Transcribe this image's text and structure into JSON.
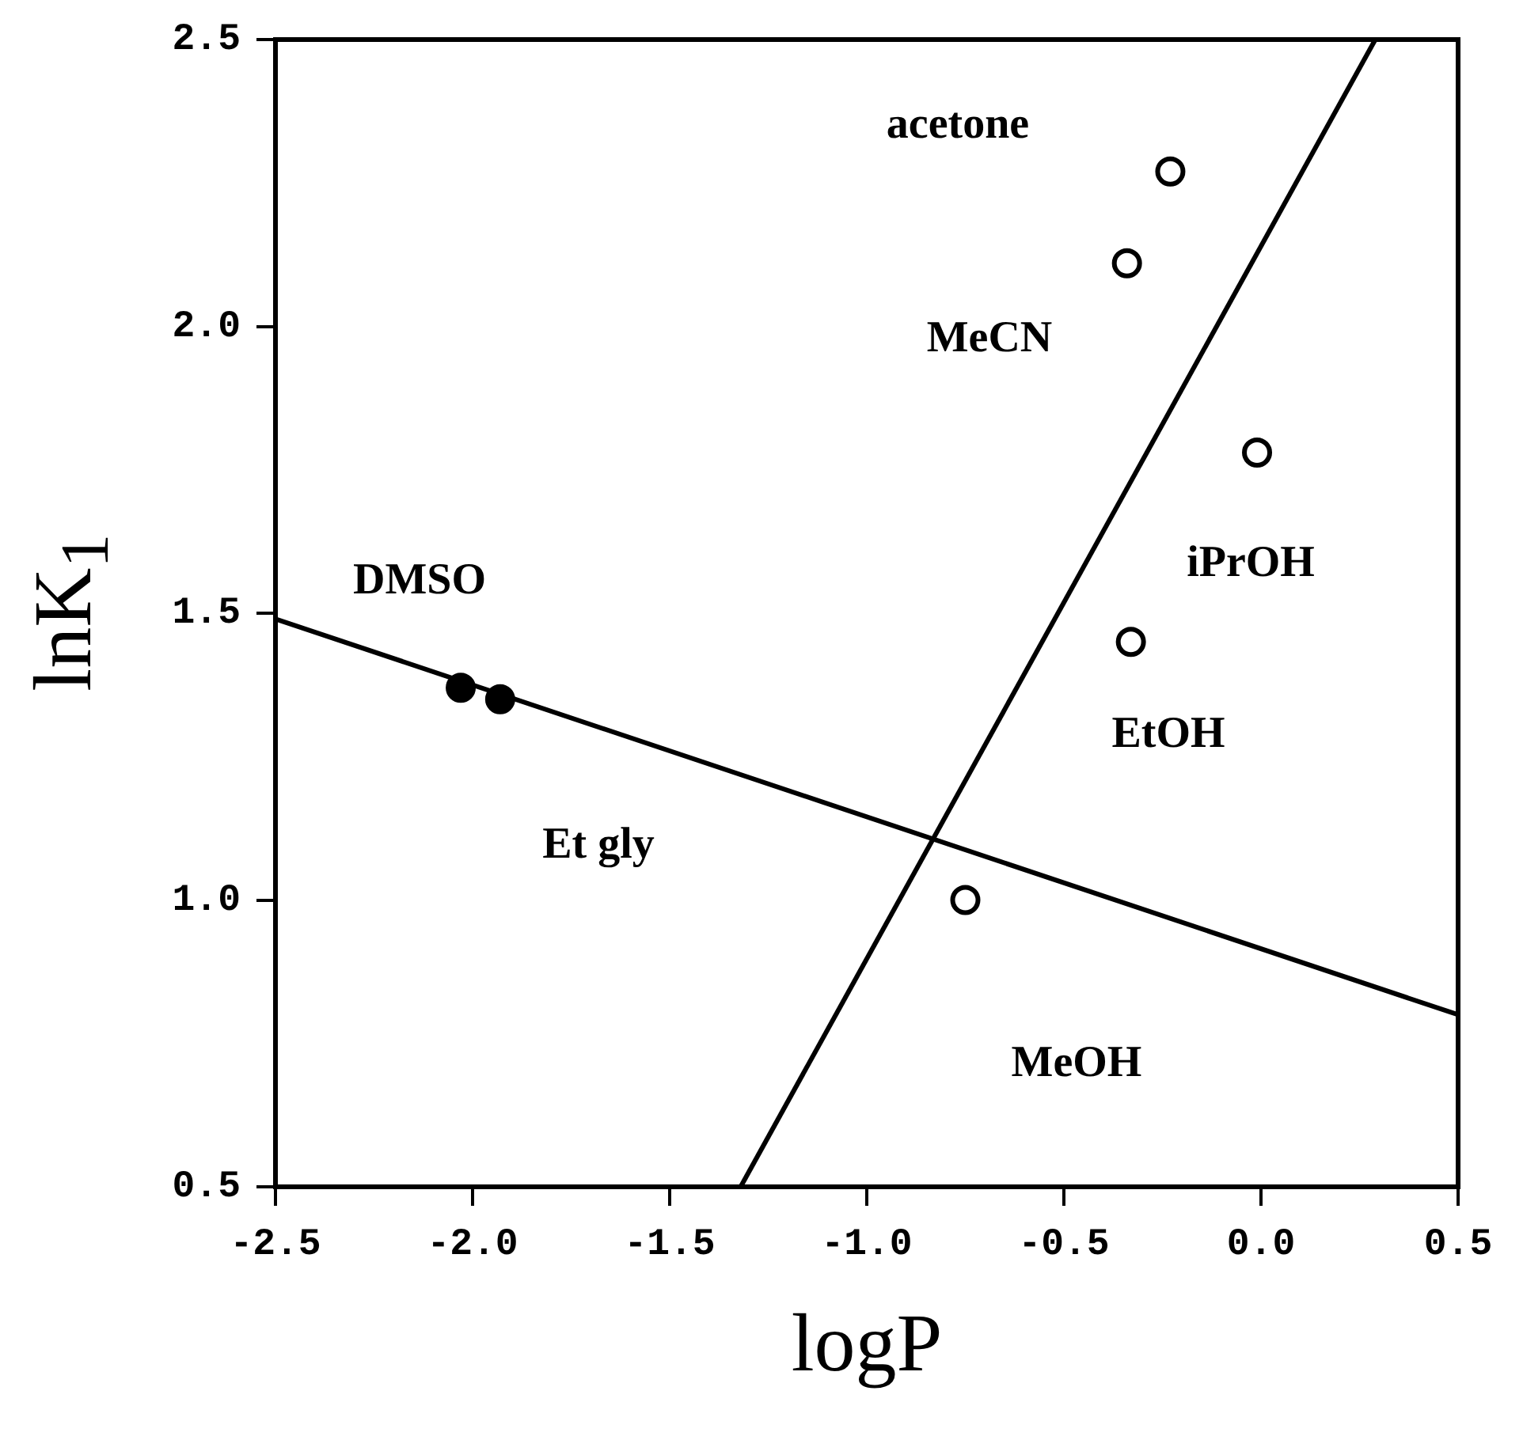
{
  "chart_data": {
    "type": "scatter",
    "xlabel": "logP",
    "ylabel": "lnK$_{1}$",
    "xlim": [
      -2.5,
      0.5
    ],
    "ylim": [
      0.5,
      2.5
    ],
    "xticks": [
      -2.5,
      {
        "value": -2,
        "label": "-2.0"
      },
      -1.5,
      {
        "value": -1,
        "label": "-1.0"
      },
      -0.5,
      {
        "value": 0,
        "label": "0.0"
      },
      0.5
    ],
    "yticks": [
      0.5,
      {
        "value": 1,
        "label": "1.0"
      },
      1.5,
      {
        "value": 2,
        "label": "2.0"
      },
      2.5
    ],
    "grid": false,
    "legend": false,
    "marker": "circle",
    "series": [
      {
        "color": "#000000",
        "x": [
          -2.03,
          -1.93
        ],
        "values": [
          1.37,
          1.35
        ]
      },
      {
        "color": "#ffffff",
        "x": [
          -0.23,
          -0.34,
          -0.01,
          -0.33,
          -0.75
        ],
        "values": [
          2.27,
          2.11,
          1.78,
          1.45,
          1.0
        ]
      },
      {
        "type": "line",
        "marker": "none",
        "color": "#000000",
        "x": [
          -2.5,
          0.5
        ],
        "values": [
          1.49,
          0.8
        ]
      },
      {
        "type": "line",
        "marker": "none",
        "color": "#000000",
        "x": [
          -1.32,
          0.29
        ],
        "values": [
          0.5,
          2.5
        ]
      }
    ],
    "annotations": [
      "acetone",
      "MeCN",
      "iPrOH",
      "EtOH",
      "MeOH",
      "DMSO",
      "Et gly"
    ]
  }
}
